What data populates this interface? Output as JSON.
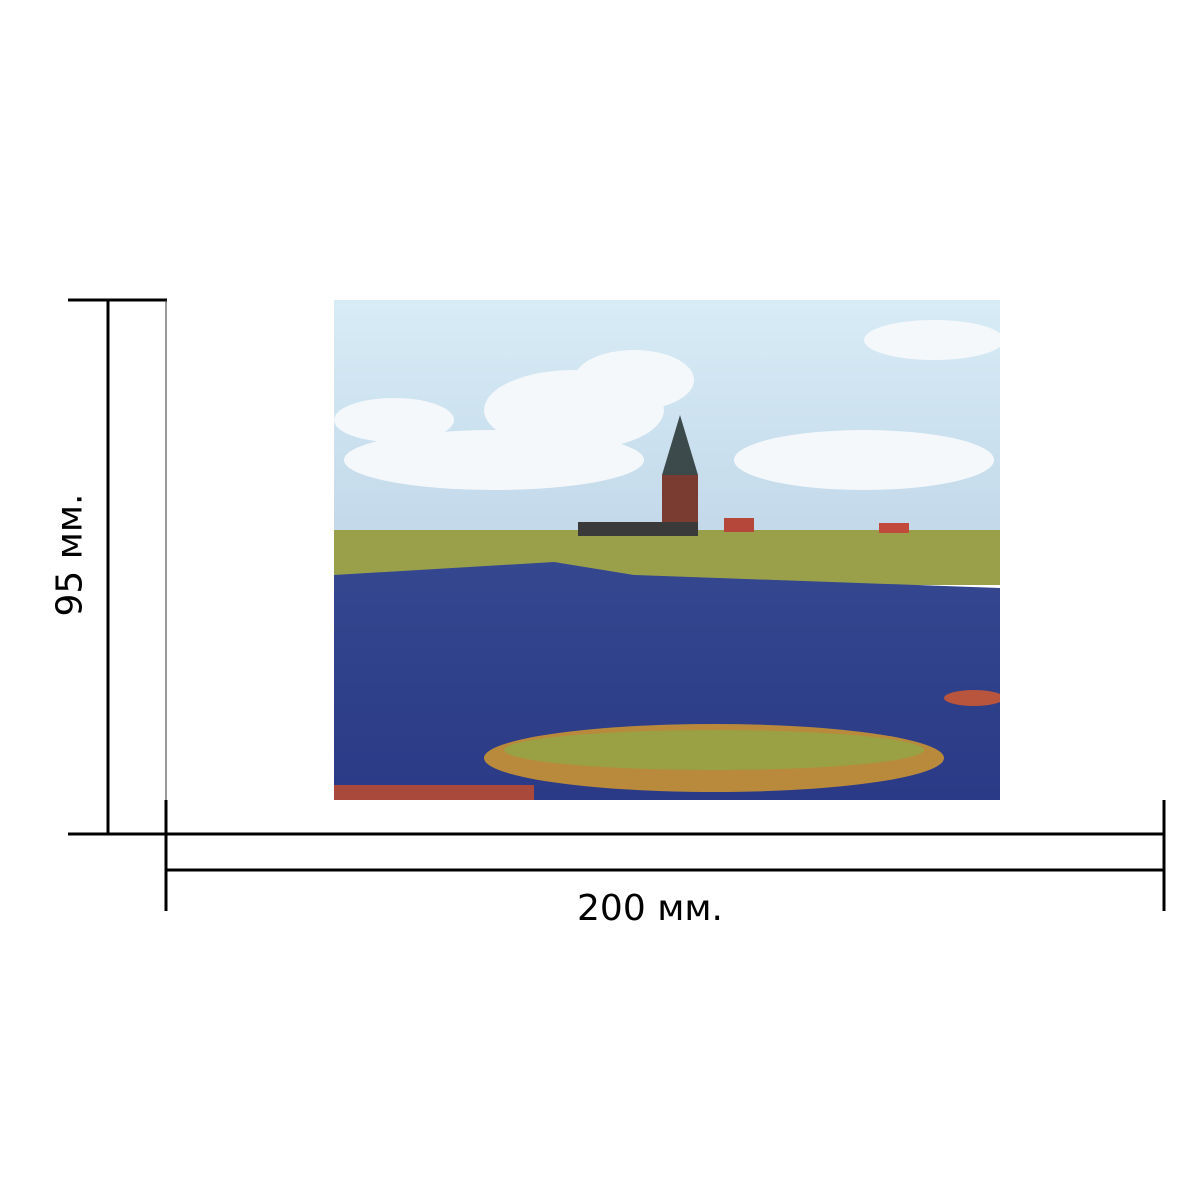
{
  "dimensions": {
    "width_label": "200 мм.",
    "height_label": "95 мм."
  },
  "photo": {
    "subject": "landscape-photo",
    "colors": {
      "sky": "#cfe3f1",
      "water": "#2c3f8c",
      "grass": "#9aa04a",
      "tower": "#7a3b30"
    }
  }
}
